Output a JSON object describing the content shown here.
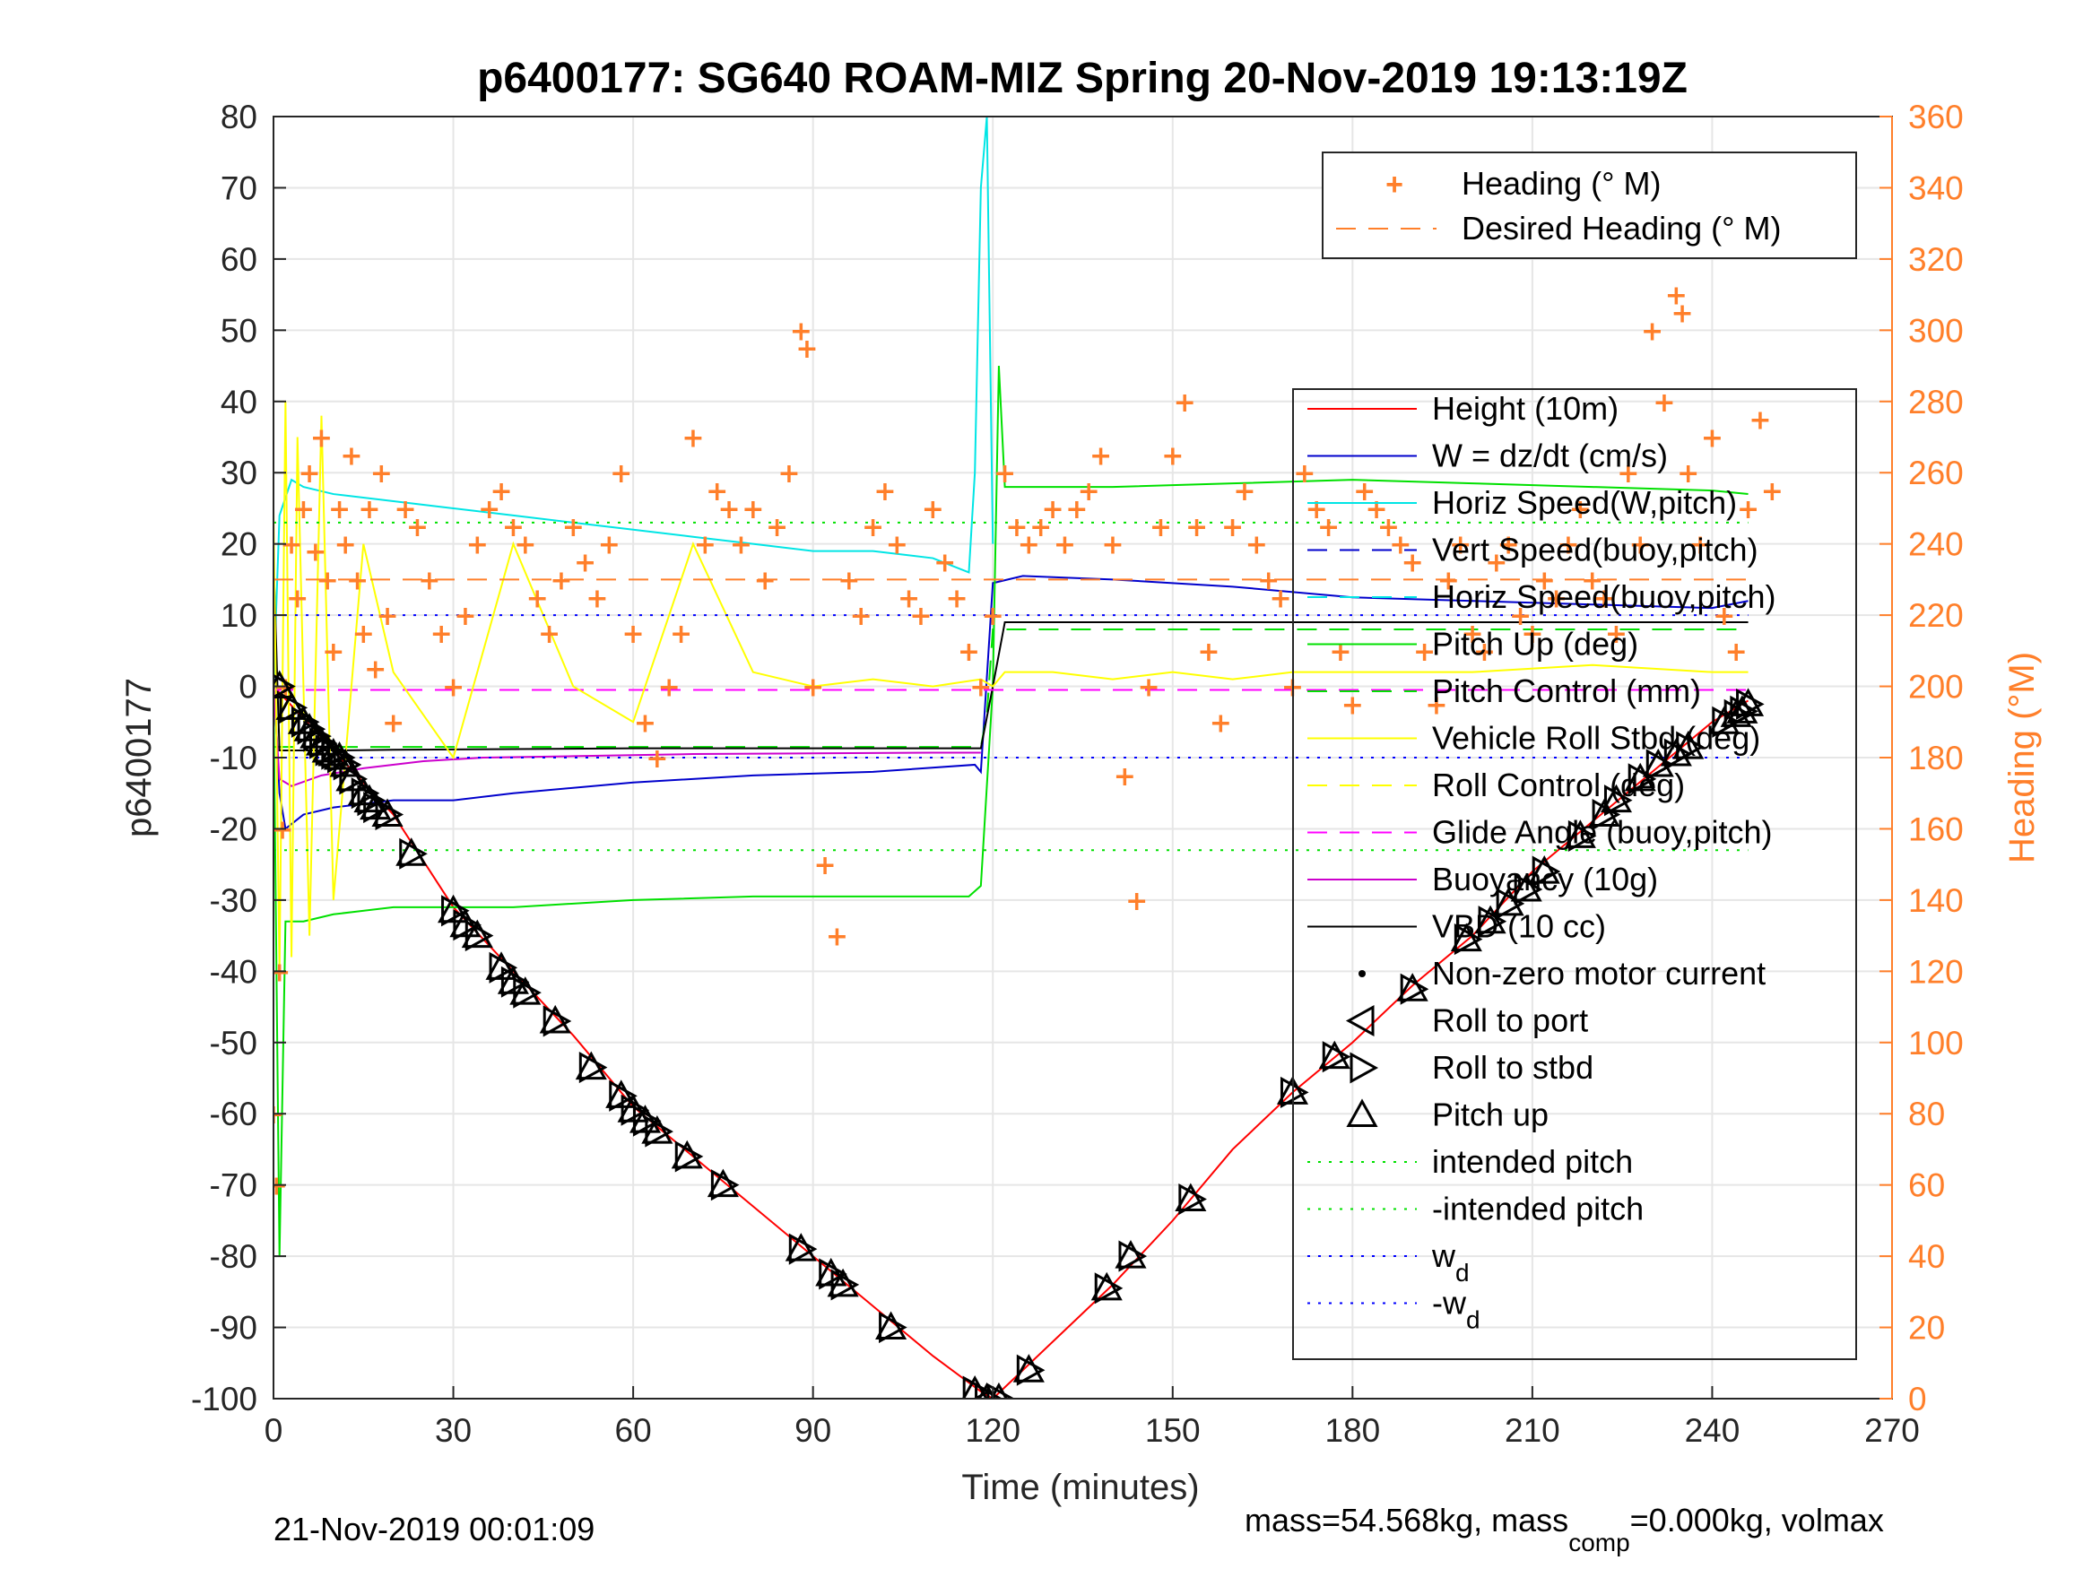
{
  "chart_data": {
    "type": "line",
    "title": "p6400177: SG640 ROAM-MIZ Spring 20-Nov-2019 19:13:19Z",
    "xlabel": "Time (minutes)",
    "ylabel": "p6400177",
    "ylabel_right": "Heading (°M)",
    "xlim": [
      0,
      270
    ],
    "ylim": [
      -100,
      80
    ],
    "ylim_right": [
      0,
      360
    ],
    "xticks": [
      0,
      30,
      60,
      90,
      120,
      150,
      180,
      210,
      240,
      270
    ],
    "yticks": [
      -100,
      -90,
      -80,
      -70,
      -60,
      -50,
      -40,
      -30,
      -20,
      -10,
      0,
      10,
      20,
      30,
      40,
      50,
      60,
      70,
      80
    ],
    "yticks_right": [
      0,
      20,
      40,
      60,
      80,
      100,
      120,
      140,
      160,
      180,
      200,
      220,
      240,
      260,
      280,
      300,
      320,
      340,
      360
    ],
    "grid": true,
    "footer_left": "21-Nov-2019 00:01:09",
    "footer_right_parts": [
      "mass=54.568kg, mass",
      "comp",
      "=0.000kg, volmax"
    ],
    "legend_heading": {
      "placement": "top-right",
      "entries": [
        "Heading (° M)",
        "Desired Heading (° M)"
      ]
    },
    "legend_main": {
      "placement": "right",
      "entries": [
        {
          "label": "Height (10m)",
          "color": "#ff0000",
          "style": "solid"
        },
        {
          "label": "W = dz/dt (cm/s)",
          "color": "#0000cc",
          "style": "solid"
        },
        {
          "label": "Horiz Speed(W,pitch)",
          "color": "#00e5e5",
          "style": "solid"
        },
        {
          "label": "Vert Speed(buoy,pitch)",
          "color": "#0000cc",
          "style": "dash"
        },
        {
          "label": "Horiz Speed(buoy,pitch)",
          "color": "#00e5e5",
          "style": "dash"
        },
        {
          "label": "Pitch Up (deg)",
          "color": "#00e000",
          "style": "solid"
        },
        {
          "label": "Pitch Control (mm)",
          "color": "#00e000",
          "style": "dash"
        },
        {
          "label": "Vehicle Roll Stbd (deg)",
          "color": "#ffff00",
          "style": "solid"
        },
        {
          "label": "Roll Control (deg)",
          "color": "#ffff00",
          "style": "dash"
        },
        {
          "label": "Glide Angle (buoy,pitch)",
          "color": "#ff00ff",
          "style": "dash"
        },
        {
          "label": "Buoyancy (10g)",
          "color": "#cc00cc",
          "style": "solid"
        },
        {
          "label": "VBD (10 cc)",
          "color": "#000000",
          "style": "solid"
        },
        {
          "label": "Non-zero motor current",
          "color": "#000000",
          "style": "dot"
        },
        {
          "label": "Roll to port",
          "color": "#000000",
          "style": "tri-left"
        },
        {
          "label": "Roll to stbd",
          "color": "#000000",
          "style": "tri-right"
        },
        {
          "label": "Pitch up",
          "color": "#000000",
          "style": "tri-up"
        },
        {
          "label": "intended pitch",
          "color": "#00e000",
          "style": "dotted"
        },
        {
          "label": "-intended pitch",
          "color": "#00e000",
          "style": "dotted"
        },
        {
          "label": "w",
          "sub": "d",
          "color": "#0000ff",
          "style": "dotted"
        },
        {
          "label": "-w",
          "sub": "d",
          "color": "#0000ff",
          "style": "dotted"
        }
      ]
    },
    "series": [
      {
        "name": "Height (10m)",
        "color": "#ff0000",
        "x": [
          0,
          10,
          20,
          30,
          40,
          50,
          60,
          70,
          80,
          90,
          100,
          110,
          118,
          120,
          125,
          140,
          150,
          160,
          170,
          180,
          190,
          200,
          210,
          220,
          230,
          240,
          246
        ],
        "y": [
          0,
          -9,
          -18,
          -31,
          -40,
          -49,
          -59,
          -66,
          -73,
          -80,
          -87,
          -94,
          -99,
          -100,
          -96,
          -84,
          -75,
          -65,
          -57,
          -50,
          -42,
          -35,
          -26,
          -19,
          -12,
          -5,
          -2
        ]
      },
      {
        "name": "W = dz/dt (cm/s)",
        "color": "#0000cc",
        "x": [
          0,
          1,
          2,
          5,
          10,
          20,
          30,
          40,
          60,
          80,
          100,
          117,
          118,
          120,
          125,
          140,
          160,
          180,
          200,
          220,
          240,
          246
        ],
        "y": [
          2,
          -15,
          -20,
          -18,
          -17,
          -16,
          -16,
          -15,
          -13.5,
          -12.5,
          -12,
          -11,
          -12,
          14.5,
          15.5,
          15,
          14,
          12.5,
          12,
          11.5,
          11,
          12
        ]
      },
      {
        "name": "Horiz Speed(W,pitch)",
        "color": "#00e5e5",
        "x": [
          0,
          1,
          3,
          5,
          10,
          20,
          30,
          40,
          50,
          60,
          70,
          80,
          90,
          100,
          110,
          116,
          117,
          118,
          119,
          120
        ],
        "y": [
          0,
          24,
          29,
          28,
          27,
          26,
          25,
          24,
          23,
          22,
          21,
          20,
          19,
          19,
          18,
          16,
          30,
          70,
          80,
          20
        ]
      },
      {
        "name": "Pitch Up (deg)",
        "color": "#00e000",
        "x": [
          0,
          1,
          2,
          5,
          10,
          20,
          30,
          40,
          60,
          80,
          100,
          116,
          118,
          120,
          121,
          122,
          125,
          140,
          160,
          180,
          200,
          220,
          240,
          246
        ],
        "y": [
          0,
          -80,
          -33,
          -33,
          -32,
          -31,
          -31,
          -31,
          -30,
          -29.5,
          -29.5,
          -29.5,
          -28,
          0,
          45,
          28,
          28,
          28,
          28.5,
          29,
          28.5,
          28,
          27.5,
          27
        ]
      },
      {
        "name": "Pitch Control (mm)",
        "color": "#00e000",
        "x": [
          0,
          118,
          119,
          120,
          246
        ],
        "y": [
          -8.5,
          -8.5,
          -4,
          8,
          8
        ]
      },
      {
        "name": "Buoyancy (10g)",
        "color": "#cc00cc",
        "x": [
          0,
          1,
          3,
          8,
          15,
          25,
          35,
          50,
          70,
          90,
          110,
          118
        ],
        "y": [
          0,
          -13,
          -14,
          -12.5,
          -11.5,
          -10.5,
          -10,
          -9.8,
          -9.5,
          -9.4,
          -9.3,
          -9.3
        ]
      },
      {
        "name": "VBD (10 cc)",
        "color": "#000000",
        "x": [
          0,
          1,
          3,
          10,
          20,
          40,
          60,
          80,
          100,
          118,
          120,
          122,
          130,
          150,
          170,
          190,
          210,
          230,
          246
        ],
        "y": [
          18,
          -9,
          -9,
          -9,
          -8.9,
          -8.8,
          -8.7,
          -8.7,
          -8.7,
          -8.7,
          0,
          9,
          9,
          9,
          9,
          9,
          9,
          9,
          9
        ]
      },
      {
        "name": "Glide Angle (buoy,pitch)",
        "color": "#ff00ff",
        "x": [
          0,
          120,
          246
        ],
        "y": [
          -0.5,
          -0.5,
          -0.5
        ]
      },
      {
        "name": "Vehicle Roll Stbd (deg)",
        "color": "#ffff00",
        "x": [
          0,
          1,
          2,
          3,
          4,
          6,
          8,
          10,
          15,
          20,
          30,
          40,
          50,
          60,
          70,
          80,
          90,
          100,
          110,
          118,
          120,
          122,
          130,
          140,
          150,
          160,
          170,
          180,
          200,
          220,
          240,
          246
        ],
        "y": [
          25,
          -40,
          40,
          -38,
          35,
          -35,
          38,
          -30,
          20,
          2,
          -10,
          20,
          0,
          -5,
          20,
          2,
          0,
          1,
          0,
          1,
          0,
          2,
          2,
          1,
          2,
          1,
          2,
          2,
          2,
          3,
          2,
          2
        ]
      },
      {
        "name": "intended pitch",
        "color": "#00e000",
        "x": [
          0,
          246
        ],
        "y": [
          23,
          23
        ]
      },
      {
        "name": "-intended pitch",
        "color": "#00e000",
        "x": [
          0,
          246
        ],
        "y": [
          -23,
          -23
        ]
      },
      {
        "name": "w_d",
        "color": "#0000ff",
        "x": [
          0,
          246
        ],
        "y": [
          10,
          10
        ]
      },
      {
        "name": "-w_d",
        "color": "#0000ff",
        "x": [
          0,
          246
        ],
        "y": [
          -10,
          -10
        ]
      },
      {
        "name": "Desired Heading",
        "axis": "right",
        "color": "#ff7f2a",
        "x": [
          0,
          120,
          246
        ],
        "y": [
          230,
          230,
          230
        ]
      }
    ],
    "heading_points": {
      "axis": "right",
      "x": [
        0,
        0.5,
        1,
        1.5,
        2,
        3,
        4,
        5,
        6,
        7,
        8,
        9,
        10,
        11,
        12,
        13,
        14,
        15,
        16,
        17,
        18,
        19,
        20,
        22,
        24,
        26,
        28,
        30,
        32,
        34,
        36,
        38,
        40,
        42,
        44,
        46,
        48,
        50,
        52,
        54,
        56,
        58,
        60,
        62,
        64,
        66,
        68,
        70,
        72,
        74,
        76,
        78,
        80,
        82,
        84,
        86,
        88,
        89,
        90,
        92,
        94,
        96,
        98,
        100,
        102,
        104,
        106,
        108,
        110,
        112,
        114,
        116,
        118,
        120,
        122,
        124,
        126,
        128,
        130,
        132,
        134,
        136,
        138,
        140,
        142,
        144,
        146,
        148,
        150,
        152,
        154,
        156,
        158,
        160,
        162,
        164,
        166,
        168,
        170,
        172,
        174,
        176,
        178,
        180,
        182,
        184,
        186,
        188,
        190,
        192,
        194,
        196,
        198,
        200,
        202,
        204,
        206,
        208,
        210,
        212,
        214,
        216,
        218,
        220,
        222,
        224,
        226,
        228,
        230,
        232,
        234,
        235,
        236,
        238,
        240,
        242,
        244,
        246,
        248,
        250
      ],
      "y": [
        80,
        60,
        120,
        160,
        200,
        240,
        225,
        250,
        260,
        238,
        270,
        230,
        210,
        250,
        240,
        265,
        230,
        215,
        250,
        205,
        260,
        220,
        190,
        250,
        245,
        230,
        215,
        200,
        220,
        240,
        250,
        255,
        245,
        240,
        225,
        215,
        230,
        245,
        235,
        225,
        240,
        260,
        215,
        190,
        180,
        200,
        215,
        270,
        240,
        255,
        250,
        240,
        250,
        230,
        245,
        260,
        300,
        295,
        200,
        150,
        130,
        230,
        220,
        245,
        255,
        240,
        225,
        220,
        250,
        235,
        225,
        210,
        200,
        220,
        260,
        245,
        240,
        245,
        250,
        240,
        250,
        255,
        265,
        240,
        175,
        140,
        200,
        245,
        265,
        280,
        245,
        210,
        190,
        245,
        255,
        240,
        230,
        225,
        200,
        260,
        250,
        245,
        210,
        195,
        255,
        250,
        245,
        240,
        235,
        210,
        195,
        230,
        240,
        215,
        210,
        235,
        240,
        220,
        215,
        230,
        225,
        240,
        250,
        230,
        225,
        215,
        260,
        240,
        300,
        280,
        310,
        305,
        260,
        240,
        270,
        220,
        210,
        250,
        275,
        255
      ]
    },
    "marker_points": {
      "x": [
        1,
        3,
        5,
        6,
        7,
        8,
        9,
        10,
        11,
        12,
        13,
        15,
        16,
        17,
        19,
        23,
        30,
        32,
        34,
        38,
        40,
        42,
        47,
        53,
        58,
        60,
        62,
        64,
        69,
        75,
        88,
        93,
        95,
        103,
        117,
        119,
        121,
        126,
        139,
        143,
        153,
        170,
        177,
        190,
        199,
        203,
        206,
        209,
        212,
        218,
        222,
        224,
        228,
        231,
        234,
        236,
        242,
        244,
        245,
        246
      ],
      "y": [
        0,
        -3,
        -5,
        -6,
        -7,
        -8,
        -9,
        -9.5,
        -10,
        -11,
        -13,
        -15,
        -16,
        -17,
        -18,
        -23.5,
        -31.5,
        -33.5,
        -35,
        -39.5,
        -41.5,
        -43,
        -47,
        -53.5,
        -57.5,
        -59.5,
        -61,
        -62.5,
        -66,
        -70,
        -79,
        -82.5,
        -84,
        -90,
        -99,
        -100,
        -100,
        -96,
        -84.5,
        -80,
        -72,
        -57,
        -52,
        -42.5,
        -35.5,
        -33,
        -30.5,
        -28.5,
        -26,
        -21,
        -18,
        -16,
        -13,
        -11,
        -9.5,
        -8.5,
        -5,
        -4,
        -3.5,
        -2.5
      ]
    }
  }
}
